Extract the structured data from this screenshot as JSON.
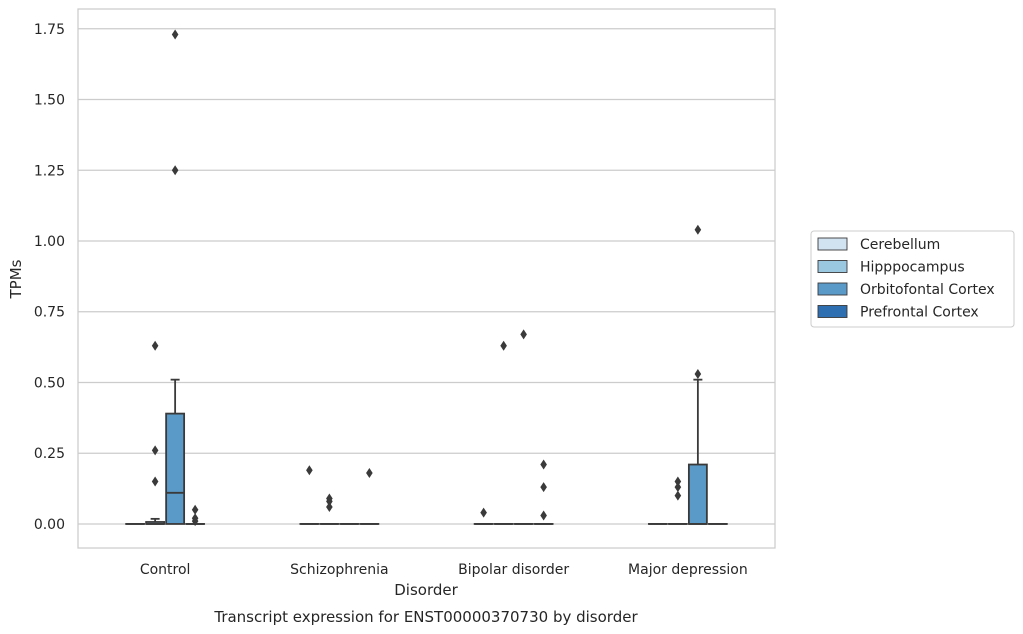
{
  "chart_data": {
    "type": "box",
    "xlabel": "Disorder",
    "ylabel": "TPMs",
    "caption": "Transcript expression for ENST00000370730 by disorder",
    "ylim": [
      -0.085,
      1.82
    ],
    "yticks": [
      0.0,
      0.25,
      0.5,
      0.75,
      1.0,
      1.25,
      1.5,
      1.75
    ],
    "ytick_labels": [
      "0.00",
      "0.25",
      "0.50",
      "0.75",
      "1.00",
      "1.25",
      "1.50",
      "1.75"
    ],
    "grid": "horizontal",
    "legend_position": "right",
    "categories": [
      "Control",
      "Schizophrenia",
      "Bipolar disorder",
      "Major depression"
    ],
    "series": [
      {
        "name": "Cerebellum",
        "color": "#d1e2f1",
        "boxes": [
          {
            "q1": 0.0,
            "median": 0.0,
            "q3": 0.0,
            "whisker_low": 0.0,
            "whisker_high": 0.0,
            "outliers": []
          },
          {
            "q1": 0.0,
            "median": 0.0,
            "q3": 0.0,
            "whisker_low": 0.0,
            "whisker_high": 0.0,
            "outliers": [
              0.19
            ]
          },
          {
            "q1": 0.0,
            "median": 0.0,
            "q3": 0.0,
            "whisker_low": 0.0,
            "whisker_high": 0.0,
            "outliers": [
              0.04
            ]
          },
          {
            "q1": 0.0,
            "median": 0.0,
            "q3": 0.0,
            "whisker_low": 0.0,
            "whisker_high": 0.0,
            "outliers": []
          }
        ]
      },
      {
        "name": "Hipppocampus",
        "color": "#9ac8e0",
        "boxes": [
          {
            "q1": 0.0,
            "median": 0.0,
            "q3": 0.007,
            "whisker_low": 0.0,
            "whisker_high": 0.018,
            "outliers": [
              0.63,
              0.26,
              0.15
            ]
          },
          {
            "q1": 0.0,
            "median": 0.0,
            "q3": 0.0,
            "whisker_low": 0.0,
            "whisker_high": 0.0,
            "outliers": [
              0.09,
              0.08,
              0.06
            ]
          },
          {
            "q1": 0.0,
            "median": 0.0,
            "q3": 0.0,
            "whisker_low": 0.0,
            "whisker_high": 0.0,
            "outliers": [
              0.63
            ]
          },
          {
            "q1": 0.0,
            "median": 0.0,
            "q3": 0.0,
            "whisker_low": 0.0,
            "whisker_high": 0.0,
            "outliers": [
              0.15,
              0.13,
              0.1
            ]
          }
        ]
      },
      {
        "name": "Orbitofontal Cortex",
        "color": "#5a9ac8",
        "boxes": [
          {
            "q1": 0.0,
            "median": 0.11,
            "q3": 0.39,
            "whisker_low": 0.0,
            "whisker_high": 0.51,
            "outliers": [
              1.73,
              1.25
            ]
          },
          {
            "q1": 0.0,
            "median": 0.0,
            "q3": 0.0,
            "whisker_low": 0.0,
            "whisker_high": 0.0,
            "outliers": []
          },
          {
            "q1": 0.0,
            "median": 0.0,
            "q3": 0.0,
            "whisker_low": 0.0,
            "whisker_high": 0.0,
            "outliers": [
              0.67
            ]
          },
          {
            "q1": 0.0,
            "median": 0.0,
            "q3": 0.21,
            "whisker_low": 0.0,
            "whisker_high": 0.51,
            "outliers": [
              1.04,
              0.53
            ]
          }
        ]
      },
      {
        "name": "Prefrontal Cortex",
        "color": "#2d6fb0",
        "boxes": [
          {
            "q1": 0.0,
            "median": 0.0,
            "q3": 0.0,
            "whisker_low": 0.0,
            "whisker_high": 0.0,
            "outliers": [
              0.05,
              0.02,
              0.01
            ]
          },
          {
            "q1": 0.0,
            "median": 0.0,
            "q3": 0.0,
            "whisker_low": 0.0,
            "whisker_high": 0.0,
            "outliers": [
              0.18
            ]
          },
          {
            "q1": 0.0,
            "median": 0.0,
            "q3": 0.0,
            "whisker_low": 0.0,
            "whisker_high": 0.0,
            "outliers": [
              0.21,
              0.13,
              0.03
            ]
          },
          {
            "q1": 0.0,
            "median": 0.0,
            "q3": 0.0,
            "whisker_low": 0.0,
            "whisker_high": 0.0,
            "outliers": []
          }
        ]
      }
    ]
  }
}
